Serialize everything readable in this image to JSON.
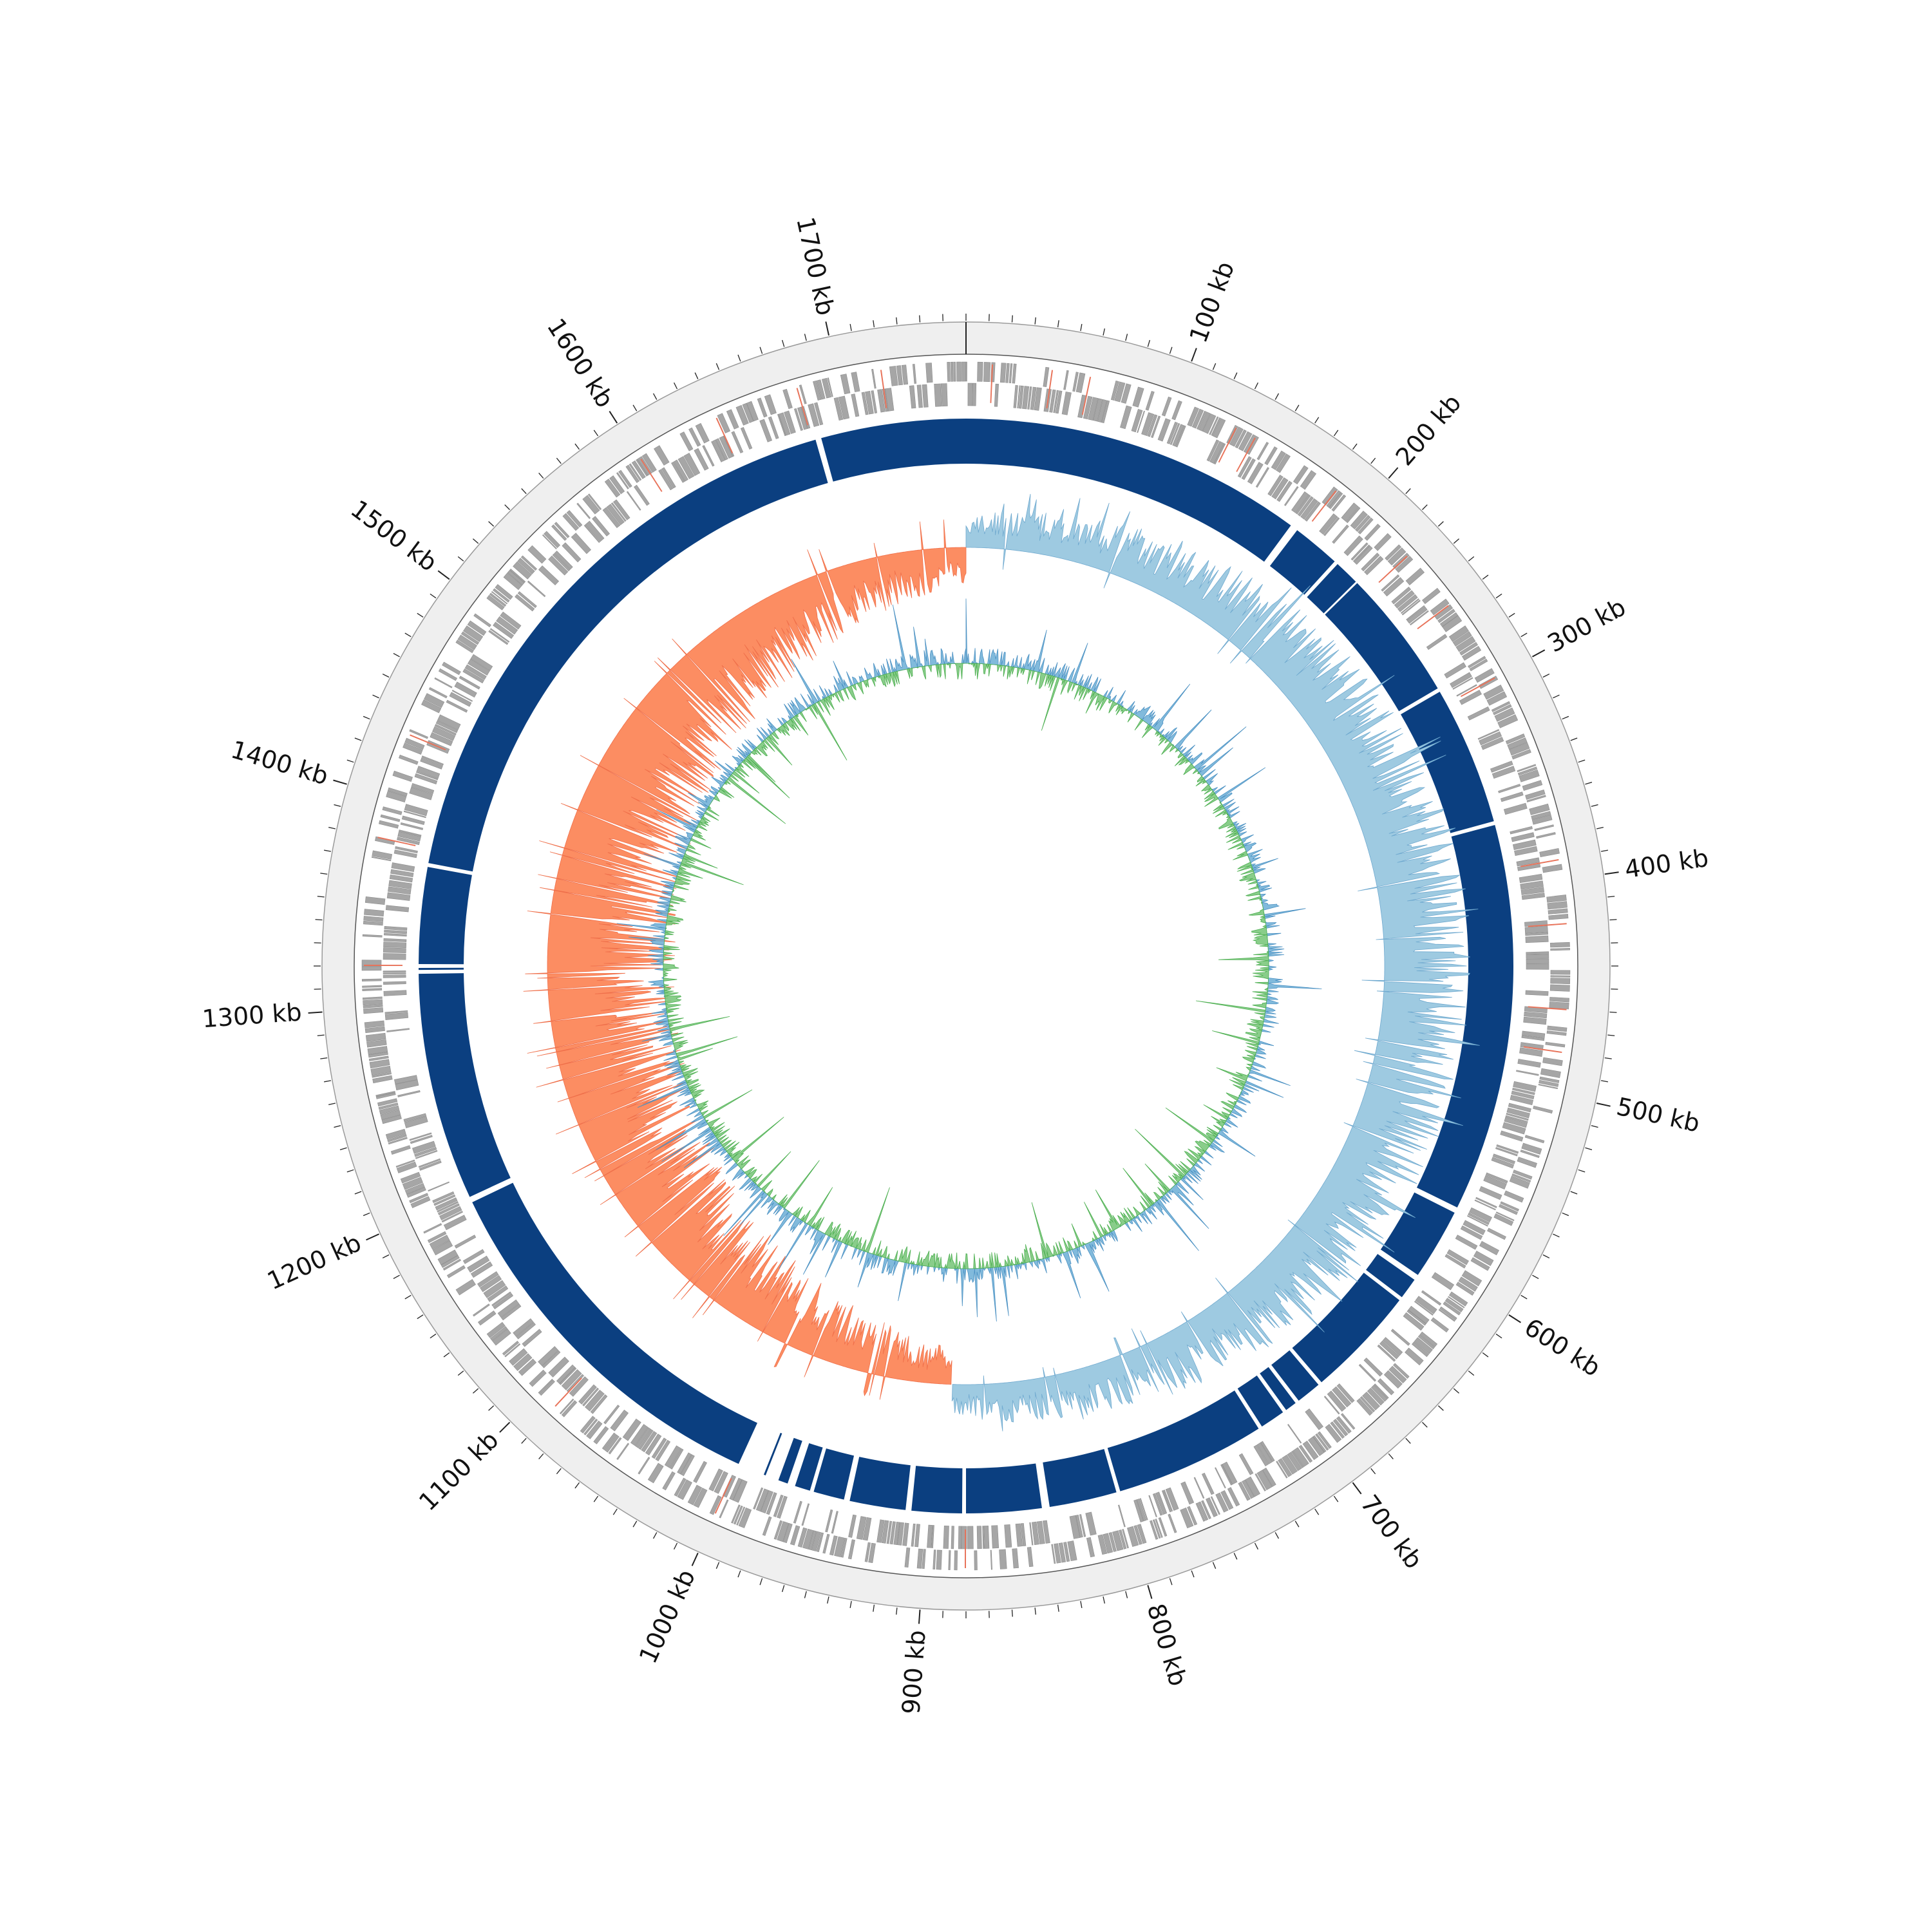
{
  "chart_data": {
    "type": "circular-genome",
    "genome_length_kb": 1760,
    "axis": {
      "unit": "kb",
      "major_tick_step_kb": 100,
      "minor_tick_step_kb": 10,
      "tick_labels": [
        "100 kb",
        "200 kb",
        "300 kb",
        "400 kb",
        "500 kb",
        "600 kb",
        "700 kb",
        "800 kb",
        "900 kb",
        "1000 kb",
        "1100 kb",
        "1200 kb",
        "1300 kb",
        "1400 kb",
        "1500 kb",
        "1600 kb",
        "1700 kb"
      ]
    },
    "tracks": {
      "features": {
        "description": "forward/reverse strand CDS features (grey), rRNA/tRNA features (red)",
        "cds_color": "#a6a6a6",
        "rna_color": "#e8735a",
        "rna_positions_kb": [
          12,
          40,
          58,
          130,
          140,
          185,
          230,
          260,
          300,
          390,
          420,
          460,
          480,
          880,
          1000,
          1090,
          1320,
          1380,
          1430,
          1600,
          1640,
          1680,
          1720
        ]
      },
      "contig_blocks": {
        "color": "#0b3f80",
        "segments_kb": [
          [
            0,
            178
          ],
          [
            182,
            207
          ],
          [
            209,
            222
          ],
          [
            223,
            291
          ],
          [
            293,
            365
          ],
          [
            367,
            568
          ],
          [
            571,
            608
          ],
          [
            611,
            622
          ],
          [
            624,
            682
          ],
          [
            684,
            697
          ],
          [
            699,
            705
          ],
          [
            707,
            720
          ],
          [
            722,
            800
          ],
          [
            802,
            837
          ],
          [
            841,
            880
          ],
          [
            882,
            908
          ],
          [
            911,
            940
          ],
          [
            943,
            959
          ],
          [
            961,
            969
          ],
          [
            973,
            978
          ],
          [
            985,
            986
          ],
          [
            1000,
            1195
          ],
          [
            1198,
            1316
          ],
          [
            1318,
            1319
          ],
          [
            1321,
            1371
          ],
          [
            1373,
            1682
          ],
          [
            1685,
            1760
          ]
        ]
      },
      "gc_skew": {
        "positive_color": "#9ecae1",
        "negative_color": "#fc8d62",
        "positive_region_kb": [
          0,
          890
        ],
        "negative_region_kb": [
          890,
          1760
        ]
      },
      "gc_content": {
        "above_color": "#6baed6",
        "below_color": "#74c476"
      }
    }
  }
}
